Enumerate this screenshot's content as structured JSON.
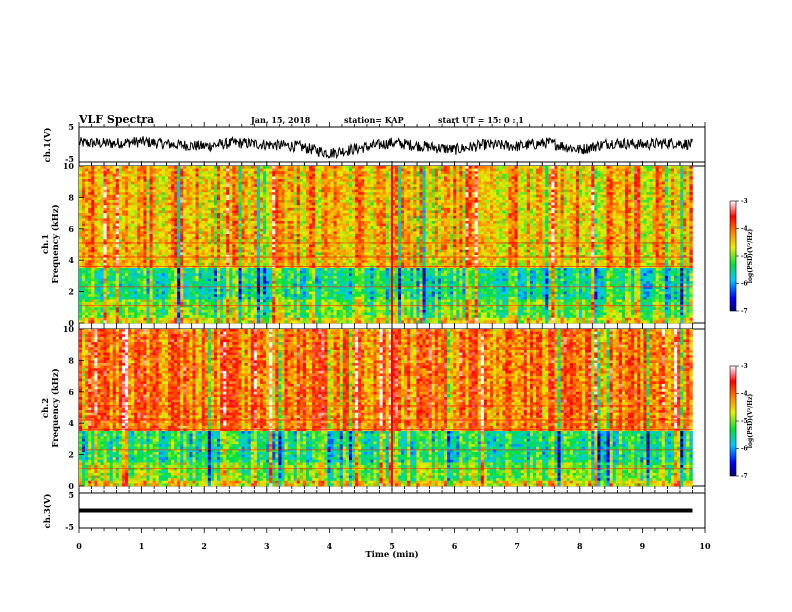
{
  "header": {
    "title": "VLF Spectra",
    "date": "Jan. 15, 2018",
    "station": "station= KAP",
    "start": "start UT =  15: 0  : 1"
  },
  "colors": {
    "spectrum_low": "#000080",
    "spectrum_mid": "#00e040",
    "spectrum_high": "#ff0000"
  },
  "chart_data": [
    {
      "type": "line",
      "panel": "ch1-waveform",
      "ylabel": "ch.1(V)",
      "ylim": [
        -5,
        5
      ],
      "yticks": [
        "5",
        "-5"
      ],
      "xlim": [
        0,
        10
      ],
      "x": [
        0,
        0.5,
        1.0,
        1.5,
        2.0,
        2.5,
        3.0,
        3.5,
        4.0,
        4.5,
        5.0,
        5.5,
        6.0,
        6.5,
        7.0,
        7.5,
        8.0,
        8.5,
        9.0,
        9.5,
        9.8
      ],
      "y": [
        0.5,
        0.3,
        0.8,
        0.0,
        -0.5,
        0.5,
        0.0,
        -0.5,
        -2.5,
        -1.0,
        0.5,
        -0.5,
        -1.5,
        0.0,
        -0.5,
        0.5,
        -1.5,
        0.5,
        0.0,
        0.5,
        0.0
      ]
    },
    {
      "type": "heatmap",
      "panel": "ch1-spectrogram",
      "ylabel": "ch.1",
      "ylabel2": "Frequency  (kHz)",
      "yticks": [
        "0",
        "2",
        "4",
        "6",
        "8",
        "10"
      ],
      "ylim": [
        0,
        10
      ],
      "xlim": [
        0,
        10
      ],
      "colorbar_label": "log(PSD)(V²/Hz)",
      "colorbar_ticks": [
        "-3",
        "-4",
        "-5",
        "-6",
        "-7"
      ],
      "clim": [
        -7,
        -3
      ]
    },
    {
      "type": "heatmap",
      "panel": "ch2-spectrogram",
      "ylabel": "ch.2",
      "ylabel2": "Frequency  (kHz)",
      "yticks": [
        "0",
        "2",
        "4",
        "6",
        "8",
        "10"
      ],
      "ylim": [
        0,
        10
      ],
      "xlim": [
        0,
        10
      ],
      "colorbar_label": "log(PSD)(V²/Hz)",
      "colorbar_ticks": [
        "-3",
        "-4",
        "-5",
        "-6",
        "-7"
      ],
      "clim": [
        -7,
        -3
      ]
    },
    {
      "type": "line",
      "panel": "ch3-waveform",
      "ylabel": "ch.3(V)",
      "ylim": [
        -5,
        5
      ],
      "yticks": [
        "5",
        "-5"
      ],
      "xlim": [
        0,
        10
      ],
      "x": [
        0,
        9.8
      ],
      "y": [
        0,
        0
      ]
    }
  ],
  "x_axis": {
    "label": "Time  (min)",
    "ticks": [
      "0",
      "1",
      "2",
      "3",
      "4",
      "5",
      "6",
      "7",
      "8",
      "9",
      "10"
    ]
  }
}
